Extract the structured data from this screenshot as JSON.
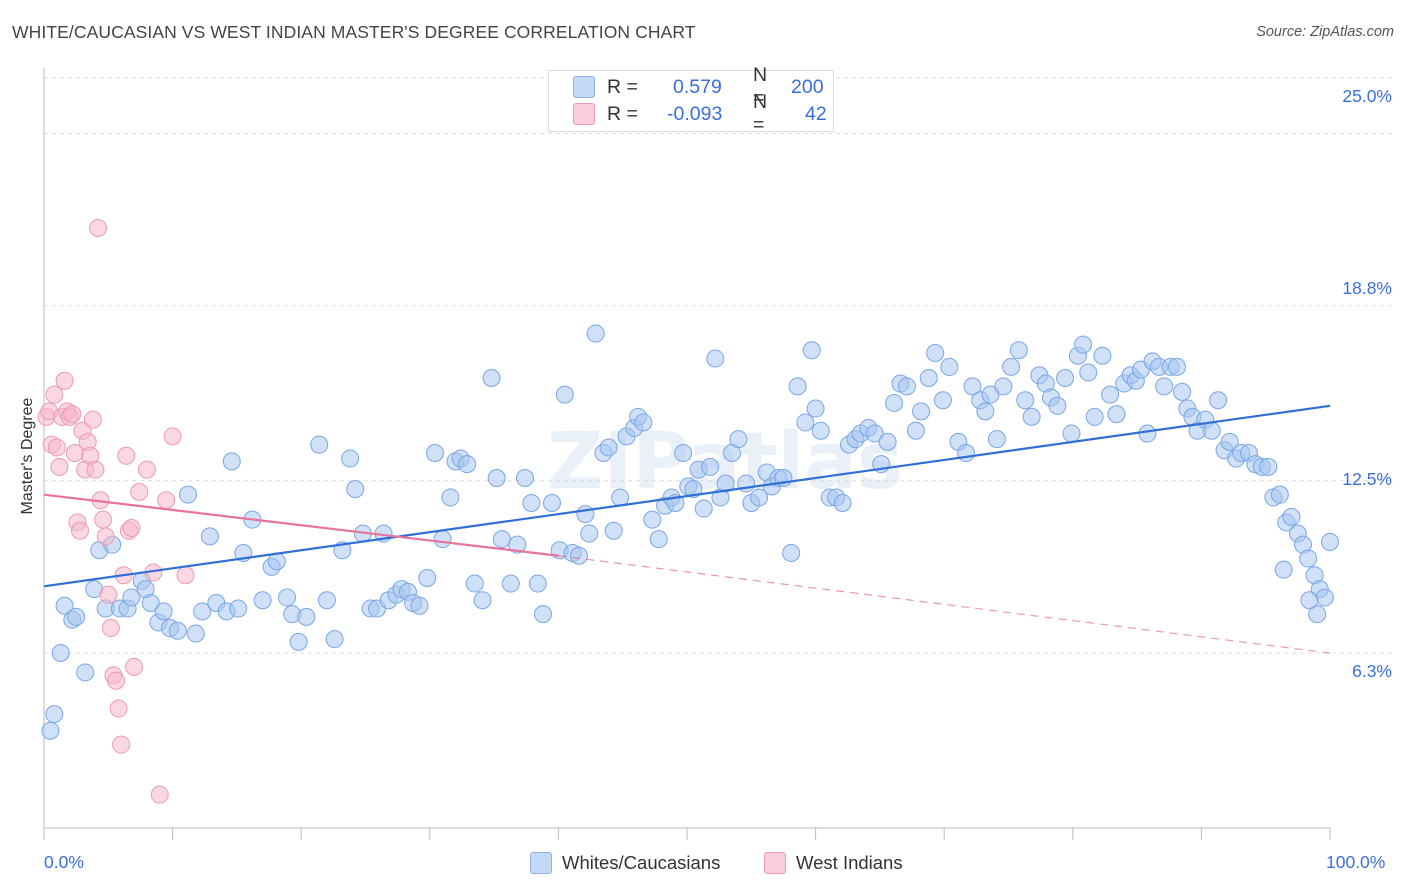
{
  "header": {
    "title": "WHITE/CAUCASIAN VS WEST INDIAN MASTER'S DEGREE CORRELATION CHART",
    "source": "Source: ZipAtlas.com"
  },
  "legend": {
    "r_label": "R =",
    "n_label": "N =",
    "series": [
      {
        "r": "0.579",
        "n": "200",
        "color": "#a8c6f0"
      },
      {
        "r": "-0.093",
        "n": "42",
        "color": "#f5b8cb"
      }
    ]
  },
  "watermark": "ZIPatlas",
  "chart_data": {
    "type": "scatter",
    "title": "WHITE/CAUCASIAN VS WEST INDIAN MASTER'S DEGREE CORRELATION CHART",
    "ylabel": "Master's Degree",
    "xlabel": "",
    "xlim": [
      0,
      100
    ],
    "ylim": [
      0,
      27
    ],
    "y_ticks": [
      {
        "value": 6.3,
        "label": "6.3%"
      },
      {
        "value": 12.5,
        "label": "12.5%"
      },
      {
        "value": 18.8,
        "label": "18.8%"
      },
      {
        "value": 25.0,
        "label": "25.0%"
      }
    ],
    "x_ticks": [
      {
        "value": 0,
        "label": "0.0%"
      },
      {
        "value": 100,
        "label": "100.0%"
      }
    ],
    "grid": true,
    "legend_position": "bottom",
    "series": [
      {
        "name": "Whites/Caucasians",
        "color": "#a8c6f0",
        "stroke": "#7aa6e6",
        "trend": {
          "x0": 0,
          "y0": 8.7,
          "x1": 100,
          "y1": 15.2,
          "color": "#2f6fd6"
        },
        "points": [
          [
            0.5,
            3.5
          ],
          [
            0.8,
            4.1
          ],
          [
            1.3,
            6.3
          ],
          [
            1.6,
            8.0
          ],
          [
            2.2,
            7.5
          ],
          [
            2.5,
            7.6
          ],
          [
            3.2,
            5.6
          ],
          [
            3.9,
            8.6
          ],
          [
            4.3,
            10.0
          ],
          [
            4.8,
            7.9
          ],
          [
            5.3,
            10.2
          ],
          [
            5.9,
            7.9
          ],
          [
            6.5,
            7.9
          ],
          [
            6.8,
            8.3
          ],
          [
            7.6,
            8.9
          ],
          [
            7.9,
            8.6
          ],
          [
            8.3,
            8.1
          ],
          [
            8.9,
            7.4
          ],
          [
            9.3,
            7.8
          ],
          [
            9.8,
            7.2
          ],
          [
            10.4,
            7.1
          ],
          [
            11.2,
            12.0
          ],
          [
            11.8,
            7.0
          ],
          [
            12.3,
            7.8
          ],
          [
            12.9,
            10.5
          ],
          [
            13.4,
            8.1
          ],
          [
            14.2,
            7.8
          ],
          [
            14.6,
            13.2
          ],
          [
            15.1,
            7.9
          ],
          [
            15.5,
            9.9
          ],
          [
            16.2,
            11.1
          ],
          [
            17.0,
            8.2
          ],
          [
            17.7,
            9.4
          ],
          [
            18.1,
            9.6
          ],
          [
            18.9,
            8.3
          ],
          [
            19.3,
            7.7
          ],
          [
            19.8,
            6.7
          ],
          [
            20.4,
            7.6
          ],
          [
            21.4,
            13.8
          ],
          [
            22.0,
            8.2
          ],
          [
            22.6,
            6.8
          ],
          [
            23.2,
            10.0
          ],
          [
            23.8,
            13.3
          ],
          [
            24.2,
            12.2
          ],
          [
            24.8,
            10.6
          ],
          [
            25.4,
            7.9
          ],
          [
            25.9,
            7.9
          ],
          [
            26.4,
            10.6
          ],
          [
            26.8,
            8.2
          ],
          [
            27.4,
            8.4
          ],
          [
            27.8,
            8.6
          ],
          [
            28.3,
            8.5
          ],
          [
            28.7,
            8.1
          ],
          [
            29.2,
            8.0
          ],
          [
            29.8,
            9.0
          ],
          [
            30.4,
            13.5
          ],
          [
            31.0,
            10.4
          ],
          [
            31.6,
            11.9
          ],
          [
            32.0,
            13.2
          ],
          [
            32.4,
            13.3
          ],
          [
            32.9,
            13.1
          ],
          [
            33.5,
            8.8
          ],
          [
            34.1,
            8.2
          ],
          [
            34.8,
            16.2
          ],
          [
            35.2,
            12.6
          ],
          [
            35.6,
            10.4
          ],
          [
            36.3,
            8.8
          ],
          [
            36.8,
            10.2
          ],
          [
            37.4,
            12.6
          ],
          [
            37.9,
            11.7
          ],
          [
            38.4,
            8.8
          ],
          [
            38.8,
            7.7
          ],
          [
            39.5,
            11.7
          ],
          [
            40.1,
            10.0
          ],
          [
            40.5,
            15.6
          ],
          [
            41.1,
            9.9
          ],
          [
            41.6,
            9.8
          ],
          [
            42.1,
            11.3
          ],
          [
            42.4,
            10.6
          ],
          [
            42.9,
            17.8
          ],
          [
            43.5,
            13.5
          ],
          [
            43.9,
            13.7
          ],
          [
            44.3,
            10.7
          ],
          [
            44.8,
            11.9
          ],
          [
            45.3,
            14.1
          ],
          [
            45.9,
            14.4
          ],
          [
            46.2,
            14.8
          ],
          [
            46.6,
            14.6
          ],
          [
            47.3,
            11.1
          ],
          [
            47.8,
            10.4
          ],
          [
            48.3,
            11.6
          ],
          [
            48.8,
            11.9
          ],
          [
            49.1,
            11.7
          ],
          [
            49.7,
            13.5
          ],
          [
            50.1,
            12.3
          ],
          [
            50.5,
            12.2
          ],
          [
            50.9,
            12.9
          ],
          [
            51.3,
            11.5
          ],
          [
            51.8,
            13.0
          ],
          [
            52.2,
            16.9
          ],
          [
            52.6,
            11.9
          ],
          [
            53.0,
            12.4
          ],
          [
            53.5,
            13.5
          ],
          [
            54.0,
            14.0
          ],
          [
            54.6,
            12.4
          ],
          [
            55.0,
            11.7
          ],
          [
            55.6,
            11.9
          ],
          [
            56.2,
            12.8
          ],
          [
            56.6,
            12.3
          ],
          [
            57.1,
            12.6
          ],
          [
            57.5,
            12.6
          ],
          [
            58.1,
            9.9
          ],
          [
            58.6,
            15.9
          ],
          [
            59.2,
            14.6
          ],
          [
            59.7,
            17.2
          ],
          [
            60.0,
            15.1
          ],
          [
            60.4,
            14.3
          ],
          [
            61.1,
            11.9
          ],
          [
            61.6,
            11.9
          ],
          [
            62.1,
            11.7
          ],
          [
            62.6,
            13.8
          ],
          [
            63.1,
            14.0
          ],
          [
            63.5,
            14.2
          ],
          [
            64.1,
            14.4
          ],
          [
            64.6,
            14.2
          ],
          [
            65.1,
            13.1
          ],
          [
            65.6,
            13.9
          ],
          [
            66.1,
            15.3
          ],
          [
            66.6,
            16.0
          ],
          [
            67.1,
            15.9
          ],
          [
            67.8,
            14.3
          ],
          [
            68.2,
            15.0
          ],
          [
            68.8,
            16.2
          ],
          [
            69.3,
            17.1
          ],
          [
            69.9,
            15.4
          ],
          [
            70.4,
            16.6
          ],
          [
            71.1,
            13.9
          ],
          [
            71.7,
            13.5
          ],
          [
            72.2,
            15.9
          ],
          [
            72.8,
            15.4
          ],
          [
            73.2,
            15.0
          ],
          [
            73.6,
            15.6
          ],
          [
            74.1,
            14.0
          ],
          [
            74.6,
            15.9
          ],
          [
            75.2,
            16.6
          ],
          [
            75.8,
            17.2
          ],
          [
            76.3,
            15.4
          ],
          [
            76.8,
            14.8
          ],
          [
            77.4,
            16.3
          ],
          [
            77.9,
            16.0
          ],
          [
            78.3,
            15.5
          ],
          [
            78.8,
            15.2
          ],
          [
            79.4,
            16.2
          ],
          [
            79.9,
            14.2
          ],
          [
            80.4,
            17.0
          ],
          [
            80.8,
            17.4
          ],
          [
            81.2,
            16.4
          ],
          [
            81.7,
            14.8
          ],
          [
            82.3,
            17.0
          ],
          [
            82.9,
            15.6
          ],
          [
            83.4,
            14.9
          ],
          [
            84.0,
            16.0
          ],
          [
            84.5,
            16.3
          ],
          [
            84.9,
            16.1
          ],
          [
            85.3,
            16.5
          ],
          [
            85.8,
            14.2
          ],
          [
            86.2,
            16.8
          ],
          [
            86.7,
            16.6
          ],
          [
            87.1,
            15.9
          ],
          [
            87.6,
            16.6
          ],
          [
            88.1,
            16.6
          ],
          [
            88.5,
            15.7
          ],
          [
            88.9,
            15.1
          ],
          [
            89.3,
            14.8
          ],
          [
            89.7,
            14.3
          ],
          [
            90.3,
            14.7
          ],
          [
            90.8,
            14.3
          ],
          [
            91.3,
            15.4
          ],
          [
            91.8,
            13.6
          ],
          [
            92.2,
            13.9
          ],
          [
            92.7,
            13.3
          ],
          [
            93.1,
            13.5
          ],
          [
            93.7,
            13.5
          ],
          [
            94.2,
            13.1
          ],
          [
            94.7,
            13.0
          ],
          [
            95.2,
            13.0
          ],
          [
            95.6,
            11.9
          ],
          [
            96.1,
            12.0
          ],
          [
            96.6,
            11.0
          ],
          [
            97.0,
            11.2
          ],
          [
            97.5,
            10.6
          ],
          [
            97.9,
            10.2
          ],
          [
            98.3,
            9.7
          ],
          [
            98.8,
            9.1
          ],
          [
            99.2,
            8.6
          ],
          [
            99.6,
            8.3
          ],
          [
            100.0,
            10.3
          ],
          [
            99.0,
            7.7
          ],
          [
            98.4,
            8.2
          ],
          [
            96.4,
            9.3
          ]
        ]
      },
      {
        "name": "West Indians",
        "color": "#f5b8cb",
        "stroke": "#ee9ab4",
        "trend": {
          "x0": 0,
          "y0": 12.0,
          "x1": 40,
          "y1": 9.8,
          "color": "#e8739a",
          "dash_to": {
            "x": 100,
            "y": 6.3
          }
        },
        "points": [
          [
            0.2,
            14.8
          ],
          [
            0.4,
            15.0
          ],
          [
            0.6,
            13.8
          ],
          [
            0.8,
            15.6
          ],
          [
            1.0,
            13.7
          ],
          [
            1.2,
            13.0
          ],
          [
            1.4,
            14.8
          ],
          [
            1.6,
            16.1
          ],
          [
            1.8,
            15.0
          ],
          [
            2.0,
            14.8
          ],
          [
            2.2,
            14.9
          ],
          [
            2.4,
            13.5
          ],
          [
            2.6,
            11.0
          ],
          [
            2.8,
            10.7
          ],
          [
            3.0,
            14.3
          ],
          [
            3.2,
            12.9
          ],
          [
            3.4,
            13.9
          ],
          [
            3.6,
            13.4
          ],
          [
            3.8,
            14.7
          ],
          [
            4.0,
            12.9
          ],
          [
            4.2,
            21.6
          ],
          [
            4.4,
            11.8
          ],
          [
            4.6,
            11.1
          ],
          [
            4.8,
            10.5
          ],
          [
            5.0,
            8.4
          ],
          [
            5.2,
            7.2
          ],
          [
            5.4,
            5.5
          ],
          [
            5.6,
            5.3
          ],
          [
            5.8,
            4.3
          ],
          [
            6.0,
            3.0
          ],
          [
            6.2,
            9.1
          ],
          [
            6.4,
            13.4
          ],
          [
            6.6,
            10.7
          ],
          [
            6.8,
            10.8
          ],
          [
            7.0,
            5.8
          ],
          [
            7.4,
            12.1
          ],
          [
            8.0,
            12.9
          ],
          [
            8.5,
            9.2
          ],
          [
            9.0,
            1.2
          ],
          [
            9.5,
            11.8
          ],
          [
            10.0,
            14.1
          ],
          [
            11.0,
            9.1
          ]
        ]
      }
    ]
  }
}
